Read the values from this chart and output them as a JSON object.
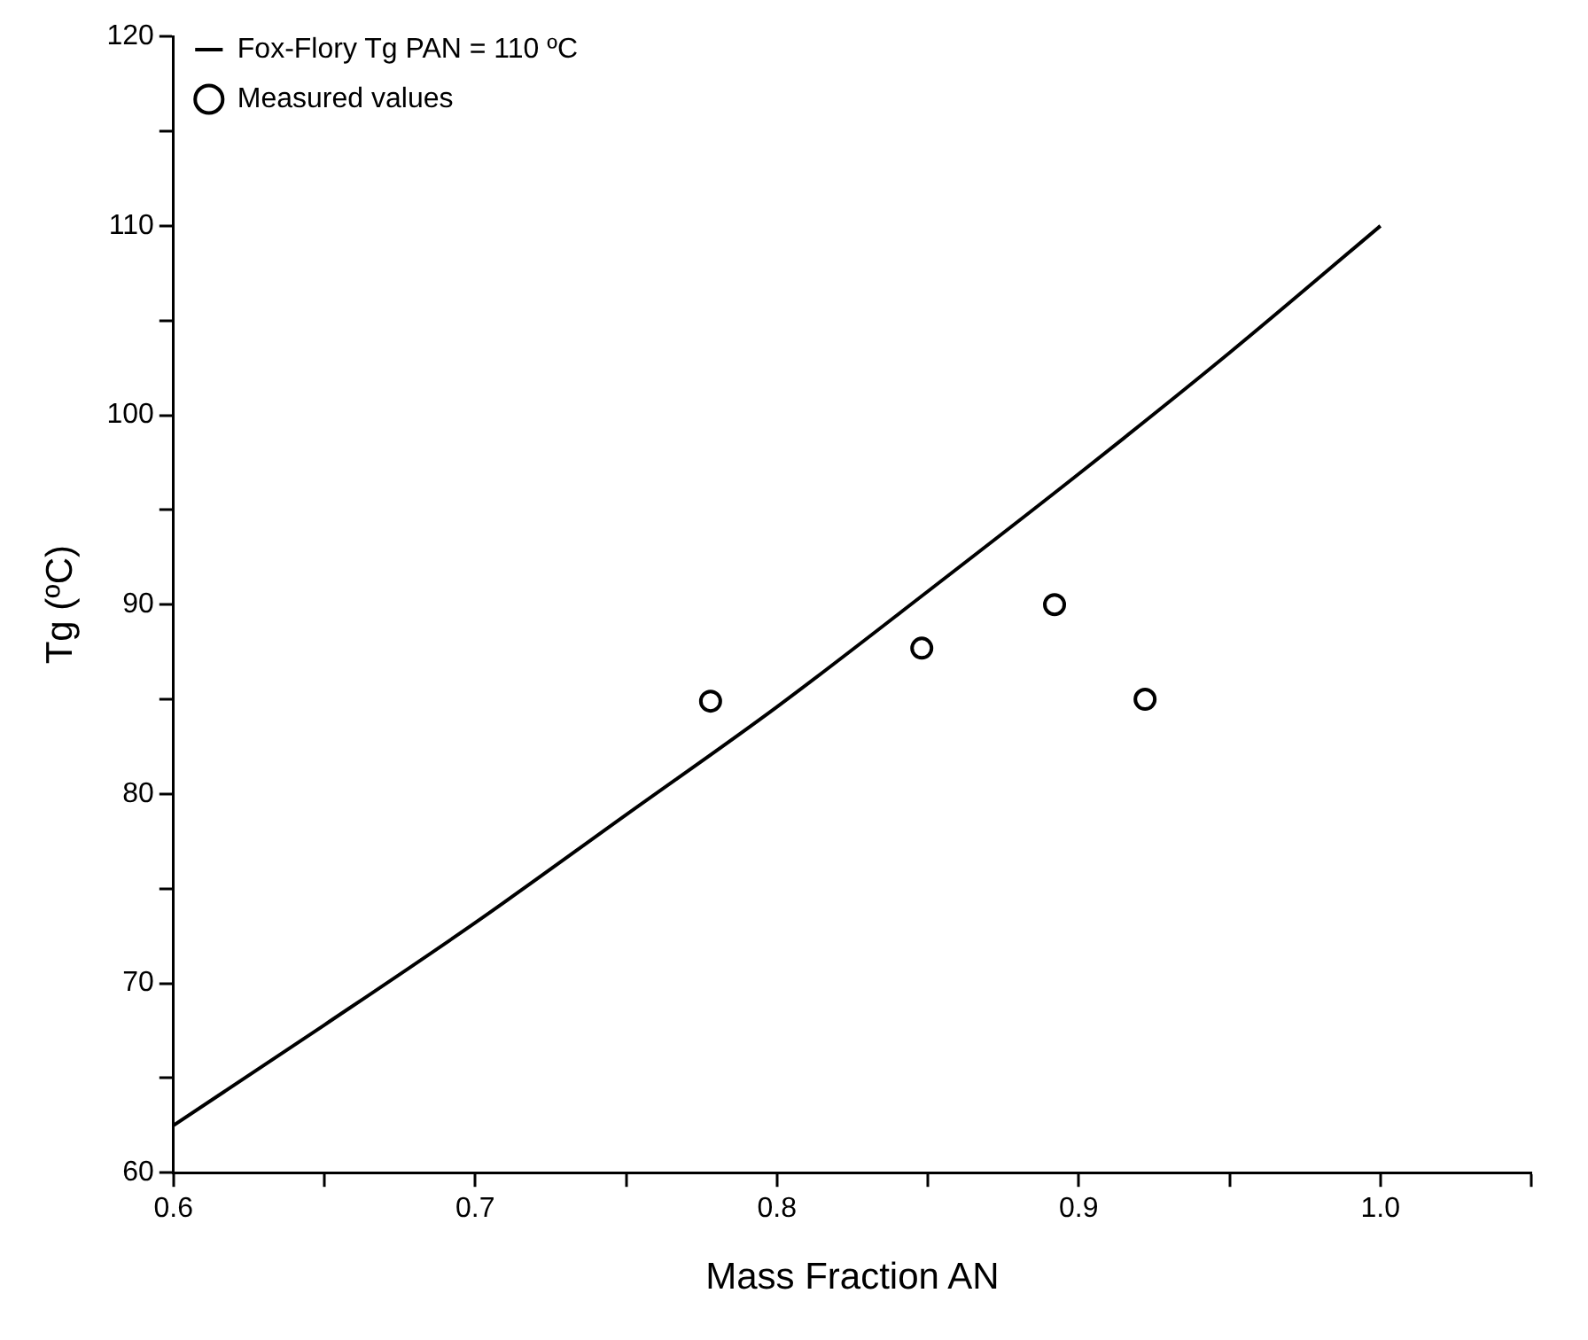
{
  "chart_data": {
    "type": "scatter",
    "xlabel": "Mass Fraction AN",
    "ylabel": "Tg (ºC)",
    "xlim": [
      0.6,
      1.05
    ],
    "ylim": [
      60,
      120
    ],
    "xticks": [
      0.6,
      {
        "value": 0.65,
        "label": null
      },
      0.7,
      {
        "value": 0.75,
        "label": null
      },
      0.8,
      {
        "value": 0.85,
        "label": null
      },
      0.9,
      {
        "value": 0.95,
        "label": null
      },
      "1.0",
      {
        "value": 1.05,
        "label": null
      }
    ],
    "yticks": [
      60,
      {
        "value": 65,
        "label": null
      },
      70,
      {
        "value": 75,
        "label": null
      },
      80,
      {
        "value": 85,
        "label": null
      },
      90,
      {
        "value": 95,
        "label": null
      },
      100,
      {
        "value": 105,
        "label": null
      },
      110,
      {
        "value": 115,
        "label": null
      },
      120
    ],
    "grid": false,
    "legend": "top left",
    "series": [
      {
        "name": "Fox-Flory Tg PAN = 110 ºC",
        "type": "line",
        "color": "#000000",
        "marker": "none",
        "line_style": "solid",
        "x": [
          0.6,
          0.65,
          0.7,
          0.75,
          0.8,
          0.85,
          0.9,
          0.95,
          1.0
        ],
        "values": [
          62.5,
          67.8,
          73.2,
          78.9,
          84.6,
          90.7,
          96.9,
          103.3,
          110
        ]
      },
      {
        "name": "Measured values",
        "color": "#000000",
        "marker": "circle",
        "x": [
          0.778,
          0.848,
          0.892,
          0.922
        ],
        "values": [
          84.9,
          87.7,
          90.0,
          85.0
        ]
      }
    ]
  }
}
